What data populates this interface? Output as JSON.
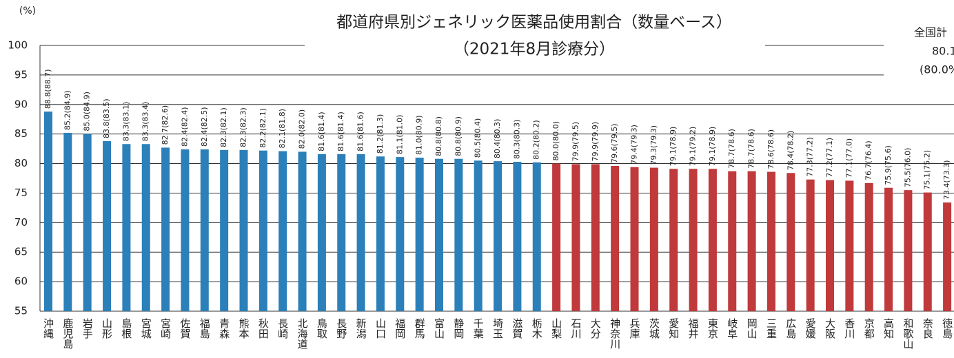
{
  "chart_data": {
    "type": "bar",
    "title": "都道府県別ジェネリック医薬品使用割合（数量ベース）",
    "subtitle": "（2021年8月診療分）",
    "y_unit": "(%)",
    "national_total": {
      "label": "全国計",
      "value_label": "80.1",
      "prev_label": "(80.0%"
    },
    "categories": [
      "沖縄",
      "鹿児島",
      "岩手",
      "山形",
      "島根",
      "宮城",
      "宮崎",
      "佐賀",
      "福島",
      "青森",
      "熊本",
      "秋田",
      "長崎",
      "北海道",
      "鳥取",
      "長野",
      "新潟",
      "山口",
      "福岡",
      "群馬",
      "富山",
      "静岡",
      "千葉",
      "埼玉",
      "滋賀",
      "栃木",
      "山梨",
      "石川",
      "大分",
      "神奈川",
      "兵庫",
      "茨城",
      "愛知",
      "福井",
      "東京",
      "岐阜",
      "岡山",
      "三重",
      "広島",
      "愛媛",
      "大阪",
      "香川",
      "京都",
      "高知",
      "和歌山",
      "奈良",
      "徳島"
    ],
    "values": [
      88.8,
      85.2,
      85.0,
      83.8,
      83.3,
      83.3,
      82.7,
      82.4,
      82.4,
      82.3,
      82.3,
      82.2,
      82.1,
      82.0,
      81.6,
      81.6,
      81.6,
      81.2,
      81.1,
      81.0,
      80.8,
      80.8,
      80.5,
      80.4,
      80.3,
      80.2,
      80.0,
      79.9,
      79.9,
      79.6,
      79.4,
      79.3,
      79.1,
      79.1,
      79.1,
      78.7,
      78.7,
      78.6,
      78.4,
      77.3,
      77.2,
      77.1,
      76.7,
      75.9,
      75.5,
      75.1,
      73.4
    ],
    "value_labels": [
      "88.8(88.7)",
      "85.2(84.9)",
      "85.0(84.9)",
      "83.8(83.5)",
      "83.3(83.1)",
      "83.3(83.4)",
      "82.7(82.6)",
      "82.4(82.4)",
      "82.4(82.5)",
      "82.3(82.1)",
      "82.3(82.3)",
      "82.2(82.1)",
      "82.1(81.8)",
      "82.0(82.0)",
      "81.6(81.4)",
      "81.6(81.4)",
      "81.6(81.6)",
      "81.2(81.3)",
      "81.1(81.0)",
      "81.0(80.9)",
      "80.8(80.8)",
      "80.8(80.9)",
      "80.5(80.4)",
      "80.4(80.3)",
      "80.3(80.3)",
      "80.2(80.2)",
      "80.0(80.0)",
      "79.9(79.5)",
      "79.9(79.9)",
      "79.6(79.5)",
      "79.4(79.3)",
      "79.3(79.3)",
      "79.1(78.9)",
      "79.1(79.2)",
      "79.1(78.9)",
      "78.7(78.6)",
      "78.7(78.6)",
      "78.6(78.6)",
      "78.4(78.2)",
      "77.3(77.2)",
      "77.2(77.1)",
      "77.1(77.0)",
      "76.7(76.4)",
      "75.9(75.6)",
      "75.5(76.0)",
      "75.1(75.2)",
      "73.4(73.3)"
    ],
    "colors": [
      "#2b80b9",
      "#2b80b9",
      "#2b80b9",
      "#2b80b9",
      "#2b80b9",
      "#2b80b9",
      "#2b80b9",
      "#2b80b9",
      "#2b80b9",
      "#2b80b9",
      "#2b80b9",
      "#2b80b9",
      "#2b80b9",
      "#2b80b9",
      "#2b80b9",
      "#2b80b9",
      "#2b80b9",
      "#2b80b9",
      "#2b80b9",
      "#2b80b9",
      "#2b80b9",
      "#2b80b9",
      "#2b80b9",
      "#2b80b9",
      "#2b80b9",
      "#2b80b9",
      "#c0393b",
      "#c0393b",
      "#c0393b",
      "#c0393b",
      "#c0393b",
      "#c0393b",
      "#c0393b",
      "#c0393b",
      "#c0393b",
      "#c0393b",
      "#c0393b",
      "#c0393b",
      "#c0393b",
      "#c0393b",
      "#c0393b",
      "#c0393b",
      "#c0393b",
      "#c0393b",
      "#c0393b",
      "#c0393b",
      "#c0393b"
    ],
    "ylim": [
      55,
      100
    ],
    "yticks": [
      55,
      60,
      65,
      70,
      75,
      80,
      85,
      90,
      95,
      100
    ],
    "grid": true
  }
}
